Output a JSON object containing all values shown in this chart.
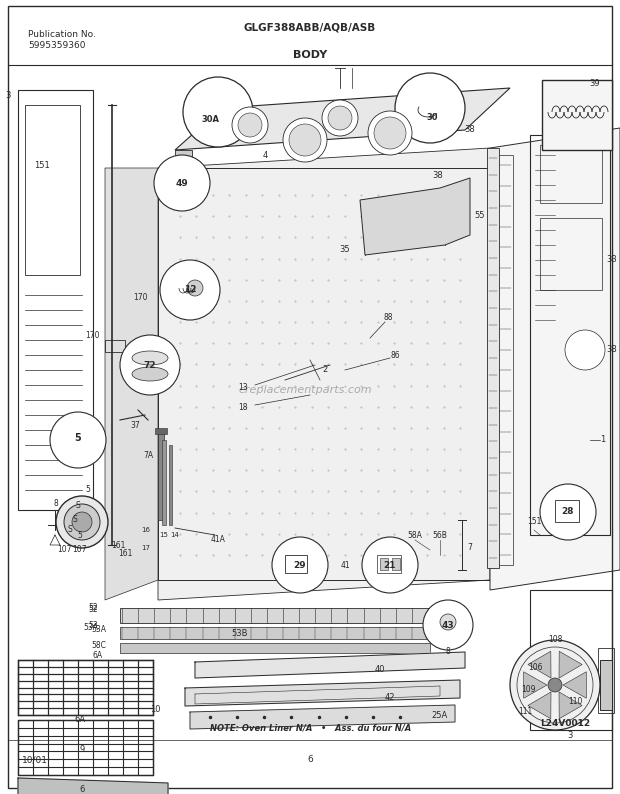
{
  "title_model": "GLGF388ABB/AQB/ASB",
  "title_section": "BODY",
  "pub_no_label": "Publication No.",
  "pub_no": "5995359360",
  "date": "10/01",
  "page": "6",
  "diagram_id": "L24V0012",
  "note": "NOTE: Oven Liner N/A   •   Ass. du four N/A",
  "bg_color": "#ffffff",
  "line_color": "#2a2a2a",
  "text_color": "#2a2a2a",
  "fig_width": 6.2,
  "fig_height": 7.94,
  "dpi": 100,
  "watermark": "ereplacementparts.com"
}
